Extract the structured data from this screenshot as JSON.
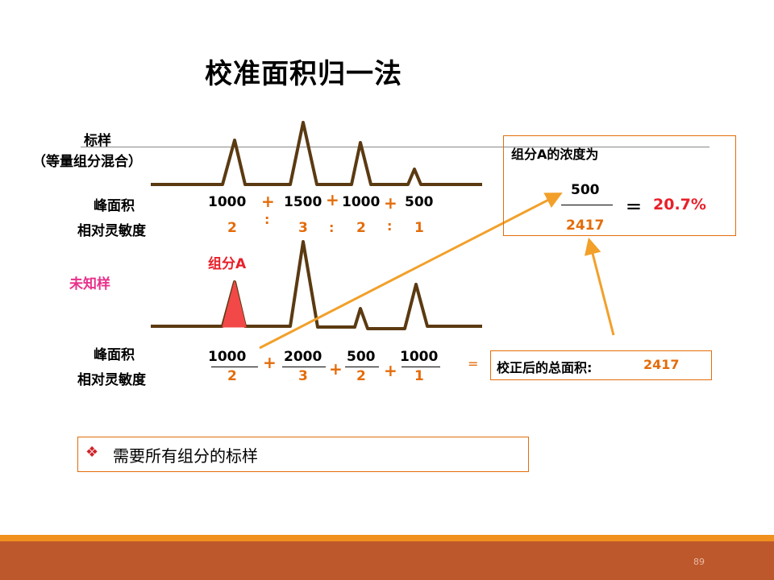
{
  "title": "校准面积归一法",
  "standard": {
    "label_line1": "标样",
    "label_line2": "（等量组分混合）",
    "peak_area_label": "峰面积",
    "sensitivity_label": "相对灵敏度",
    "areas": [
      "1000",
      "1500",
      "1000",
      "500"
    ],
    "sensitivities": [
      "2",
      "3",
      "2",
      "1"
    ],
    "plus": "+",
    "colon": ":"
  },
  "unknown": {
    "label": "未知样",
    "component_label": "组分A",
    "peak_area_label": "峰面积",
    "sensitivity_label": "相对灵敏度",
    "numerators": [
      "1000",
      "2000",
      "500",
      "1000"
    ],
    "denominators": [
      "2",
      "3",
      "2",
      "1"
    ],
    "plus": "+",
    "equals": "="
  },
  "result_box": {
    "title": "组分A的浓度为",
    "numerator": "500",
    "denominator": "2417",
    "equals": "＝",
    "result": "20.7%"
  },
  "total_box": {
    "label": "校正后的总面积:",
    "value": "2417"
  },
  "note": {
    "bullet": "❖",
    "text": "需要所有组分的标样"
  },
  "page_number": "89",
  "colors": {
    "peak_line": "#5B3A12",
    "accent_orange": "#E46C0A",
    "arrow": "#F2A02A",
    "red": "#E8202A",
    "pink": "#E8308A",
    "footer_top": "#F0901E",
    "footer_bottom": "#BD582C"
  }
}
